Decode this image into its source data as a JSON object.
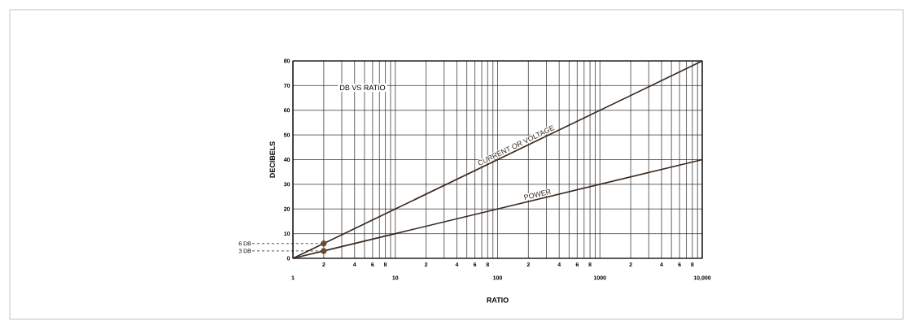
{
  "chart_data": {
    "type": "line",
    "title": "DB VS RATIO",
    "xlabel": "RATIO",
    "ylabel": "DECIBELS",
    "log": "x",
    "grid": true,
    "marker": "none",
    "line_style": "solid",
    "xlim": [
      1,
      10000
    ],
    "ylim": [
      0,
      80
    ],
    "xticks": [
      {
        "value": 1,
        "label": "1"
      },
      {
        "value": 2,
        "label": null
      },
      {
        "value": 3,
        "label": null
      },
      {
        "value": 4,
        "label": null
      },
      {
        "value": 5,
        "label": null
      },
      {
        "value": 6,
        "label": null
      },
      {
        "value": 7,
        "label": null
      },
      {
        "value": 8,
        "label": null
      },
      {
        "value": 9,
        "label": null
      },
      {
        "value": 10,
        "label": "10"
      },
      {
        "value": 20,
        "label": null
      },
      {
        "value": 30,
        "label": null
      },
      {
        "value": 40,
        "label": null
      },
      {
        "value": 50,
        "label": null
      },
      {
        "value": 60,
        "label": null
      },
      {
        "value": 70,
        "label": null
      },
      {
        "value": 80,
        "label": null
      },
      {
        "value": 90,
        "label": null
      },
      {
        "value": 100,
        "label": "100"
      },
      {
        "value": 200,
        "label": null
      },
      {
        "value": 300,
        "label": null
      },
      {
        "value": 400,
        "label": null
      },
      {
        "value": 500,
        "label": null
      },
      {
        "value": 600,
        "label": null
      },
      {
        "value": 700,
        "label": null
      },
      {
        "value": 800,
        "label": null
      },
      {
        "value": 900,
        "label": null
      },
      {
        "value": 1000,
        "label": "1000"
      },
      {
        "value": 2000,
        "label": null
      },
      {
        "value": 3000,
        "label": null
      },
      {
        "value": 4000,
        "label": null
      },
      {
        "value": 5000,
        "label": null
      },
      {
        "value": 6000,
        "label": null
      },
      {
        "value": 7000,
        "label": null
      },
      {
        "value": 8000,
        "label": null
      },
      {
        "value": 9000,
        "label": null
      },
      {
        "value": 10000,
        "label": "10,000"
      }
    ],
    "annotations": [
      "2",
      "4",
      "6",
      "8",
      "2",
      "4",
      "6",
      "8",
      "2",
      "4",
      "6",
      "8",
      "2",
      "4",
      "6",
      "8"
    ],
    "yticks": [
      0,
      10,
      20,
      30,
      40,
      50,
      60,
      70,
      80
    ],
    "series": [
      {
        "name": "CURRENT OR VOLTAGE",
        "color": "#3b2a1f",
        "x": [
          1,
          2,
          10,
          100,
          1000,
          10000
        ],
        "values": [
          0,
          6,
          20,
          40,
          60,
          80
        ]
      },
      {
        "name": "POWER",
        "color": "#3b2a1f",
        "x": [
          1,
          2,
          10,
          100,
          1000,
          10000
        ],
        "values": [
          0,
          3,
          10,
          20,
          30,
          40
        ]
      },
      {
        "type": "scatter",
        "marker": "circle",
        "color": "#6b4a35",
        "x": [
          2,
          2
        ],
        "values": [
          6,
          3
        ]
      }
    ],
    "ref_lines": [
      {
        "axis": "y",
        "value": 6,
        "label": "6 DB",
        "line_style": "dashed"
      },
      {
        "axis": "y",
        "value": 3,
        "label": "3 DB",
        "line_style": "dashed"
      }
    ]
  }
}
